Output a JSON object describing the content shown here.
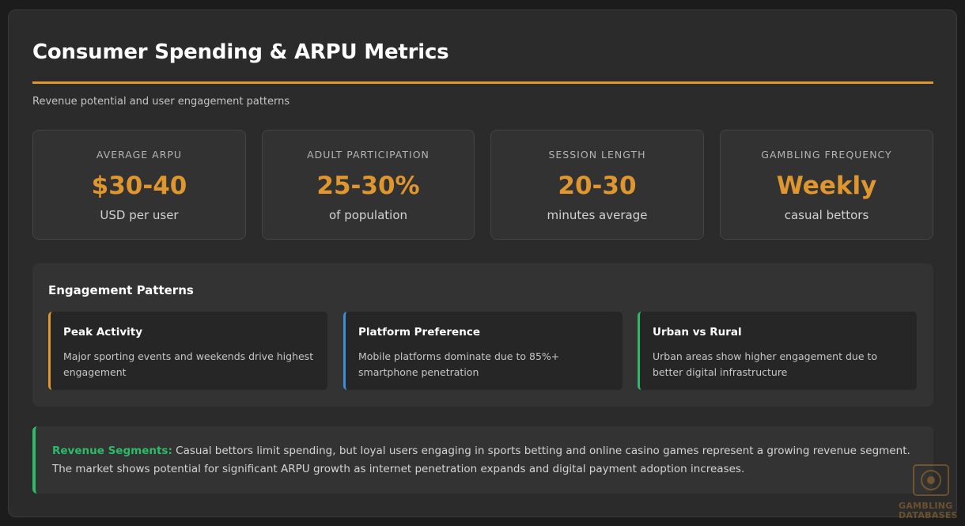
{
  "header": {
    "title": "Consumer Spending & ARPU Metrics",
    "subtitle": "Revenue potential and user engagement patterns"
  },
  "metrics": [
    {
      "label": "AVERAGE ARPU",
      "value": "$30-40",
      "sub": "USD per user"
    },
    {
      "label": "ADULT PARTICIPATION",
      "value": "25-30%",
      "sub": "of population"
    },
    {
      "label": "SESSION LENGTH",
      "value": "20-30",
      "sub": "minutes average"
    },
    {
      "label": "GAMBLING FREQUENCY",
      "value": "Weekly",
      "sub": "casual bettors"
    }
  ],
  "engagement": {
    "title": "Engagement Patterns",
    "cards": [
      {
        "title": "Peak Activity",
        "text": "Major sporting events and weekends drive highest engagement",
        "accent": "#e0962e"
      },
      {
        "title": "Platform Preference",
        "text": "Mobile platforms dominate due to 85%+ smartphone penetration",
        "accent": "#3b8fd9"
      },
      {
        "title": "Urban vs Rural",
        "text": "Urban areas show higher engagement due to better digital infrastructure",
        "accent": "#2dbb6a"
      }
    ]
  },
  "note": {
    "label": "Revenue Segments:",
    "text": " Casual bettors limit spending, but loyal users engaging in sports betting and online casino games represent a growing revenue segment. The market shows potential for significant ARPU growth as internet penetration expands and digital payment adoption increases."
  },
  "watermark": {
    "line1": "GAMBLING",
    "line2": "DATABASES"
  },
  "colors": {
    "accent": "#e0962e",
    "green": "#2dbb6a",
    "blue": "#3b8fd9"
  }
}
